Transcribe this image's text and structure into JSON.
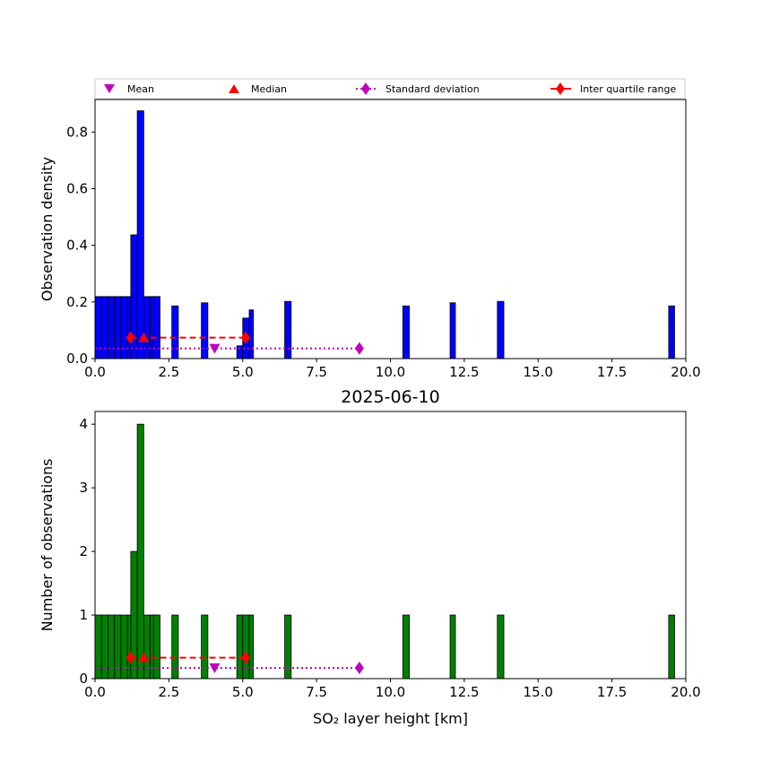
{
  "legend": {
    "mean_label": "Mean",
    "median_label": "Median",
    "std_label": "Standard deviation",
    "iqr_label": "Inter quartile range"
  },
  "colors": {
    "density_bars": "#0000ff",
    "count_bars": "#008000",
    "mean": "#bf00bf",
    "median": "#ff0000",
    "std": "#bf00bf",
    "iqr": "#ff0000"
  },
  "chart_data": [
    {
      "type": "bar",
      "title": "",
      "xlabel": "",
      "ylabel": "Observation density",
      "xlim": [
        0,
        20
      ],
      "ylim": [
        0,
        0.915
      ],
      "xticks": [
        "0.0",
        "2.5",
        "5.0",
        "7.5",
        "10.0",
        "12.5",
        "15.0",
        "17.5",
        "20.0"
      ],
      "xtick_values": [
        0,
        2.5,
        5,
        7.5,
        10,
        12.5,
        15,
        17.5,
        20
      ],
      "yticks": [
        "0.0",
        "0.2",
        "0.4",
        "0.6",
        "0.8"
      ],
      "ytick_values": [
        0,
        0.2,
        0.4,
        0.6,
        0.8
      ],
      "bars": [
        {
          "x0": 0.0,
          "x1": 0.22,
          "value": 0.219
        },
        {
          "x0": 0.22,
          "x1": 0.44,
          "value": 0.219
        },
        {
          "x0": 0.44,
          "x1": 0.66,
          "value": 0.219
        },
        {
          "x0": 0.66,
          "x1": 0.88,
          "value": 0.219
        },
        {
          "x0": 0.88,
          "x1": 1.1,
          "value": 0.219
        },
        {
          "x0": 1.1,
          "x1": 1.32,
          "value": 0.219
        },
        {
          "x0": 1.21,
          "x1": 1.43,
          "value": 0.437
        },
        {
          "x0": 1.43,
          "x1": 1.65,
          "value": 0.875
        },
        {
          "x0": 1.65,
          "x1": 1.87,
          "value": 0.219
        },
        {
          "x0": 1.87,
          "x1": 2.09,
          "value": 0.219
        },
        {
          "x0": 1.98,
          "x1": 2.2,
          "value": 0.219
        },
        {
          "x0": 2.6,
          "x1": 2.82,
          "value": 0.186
        },
        {
          "x0": 3.6,
          "x1": 3.82,
          "value": 0.197
        },
        {
          "x0": 4.8,
          "x1": 5.0,
          "value": 0.045
        },
        {
          "x0": 5.0,
          "x1": 5.22,
          "value": 0.143
        },
        {
          "x0": 5.22,
          "x1": 5.36,
          "value": 0.172
        },
        {
          "x0": 6.42,
          "x1": 6.64,
          "value": 0.202
        },
        {
          "x0": 10.42,
          "x1": 10.64,
          "value": 0.186
        },
        {
          "x0": 12.02,
          "x1": 12.2,
          "value": 0.197
        },
        {
          "x0": 13.62,
          "x1": 13.84,
          "value": 0.202
        },
        {
          "x0": 19.42,
          "x1": 19.62,
          "value": 0.186
        }
      ],
      "mean": {
        "x": 4.05,
        "y": 0.036
      },
      "median": {
        "x": 1.65,
        "y": 0.074
      },
      "std": {
        "x": [
          0.0,
          8.95
        ],
        "y": 0.036
      },
      "iqr": {
        "x": [
          1.2,
          5.1
        ],
        "y": 0.074
      }
    },
    {
      "type": "bar",
      "title": "2025-06-10",
      "xlabel": "SO₂ layer height [km]",
      "ylabel": "Number of observations",
      "xlim": [
        0,
        20
      ],
      "ylim": [
        0,
        4.2
      ],
      "xticks": [
        "0.0",
        "2.5",
        "5.0",
        "7.5",
        "10.0",
        "12.5",
        "15.0",
        "17.5",
        "20.0"
      ],
      "xtick_values": [
        0,
        2.5,
        5,
        7.5,
        10,
        12.5,
        15,
        17.5,
        20
      ],
      "yticks": [
        "0",
        "1",
        "2",
        "3",
        "4"
      ],
      "ytick_values": [
        0,
        1,
        2,
        3,
        4
      ],
      "bars": [
        {
          "x0": 0.0,
          "x1": 0.22,
          "value": 1
        },
        {
          "x0": 0.22,
          "x1": 0.44,
          "value": 1
        },
        {
          "x0": 0.44,
          "x1": 0.66,
          "value": 1
        },
        {
          "x0": 0.66,
          "x1": 0.88,
          "value": 1
        },
        {
          "x0": 0.88,
          "x1": 1.1,
          "value": 1
        },
        {
          "x0": 1.1,
          "x1": 1.32,
          "value": 1
        },
        {
          "x0": 1.21,
          "x1": 1.43,
          "value": 2
        },
        {
          "x0": 1.43,
          "x1": 1.65,
          "value": 4
        },
        {
          "x0": 1.65,
          "x1": 1.87,
          "value": 1
        },
        {
          "x0": 1.87,
          "x1": 2.09,
          "value": 1
        },
        {
          "x0": 1.98,
          "x1": 2.2,
          "value": 1
        },
        {
          "x0": 2.6,
          "x1": 2.82,
          "value": 1
        },
        {
          "x0": 3.6,
          "x1": 3.82,
          "value": 1
        },
        {
          "x0": 4.8,
          "x1": 5.0,
          "value": 1
        },
        {
          "x0": 5.0,
          "x1": 5.22,
          "value": 1
        },
        {
          "x0": 5.22,
          "x1": 5.36,
          "value": 1
        },
        {
          "x0": 6.42,
          "x1": 6.64,
          "value": 1
        },
        {
          "x0": 10.42,
          "x1": 10.64,
          "value": 1
        },
        {
          "x0": 12.02,
          "x1": 12.2,
          "value": 1
        },
        {
          "x0": 13.62,
          "x1": 13.84,
          "value": 1
        },
        {
          "x0": 19.42,
          "x1": 19.62,
          "value": 1
        }
      ],
      "mean": {
        "x": 4.05,
        "y": 0.17
      },
      "median": {
        "x": 1.65,
        "y": 0.33
      },
      "std": {
        "x": [
          0.0,
          8.95
        ],
        "y": 0.17
      },
      "iqr": {
        "x": [
          1.2,
          5.1
        ],
        "y": 0.33
      }
    }
  ]
}
